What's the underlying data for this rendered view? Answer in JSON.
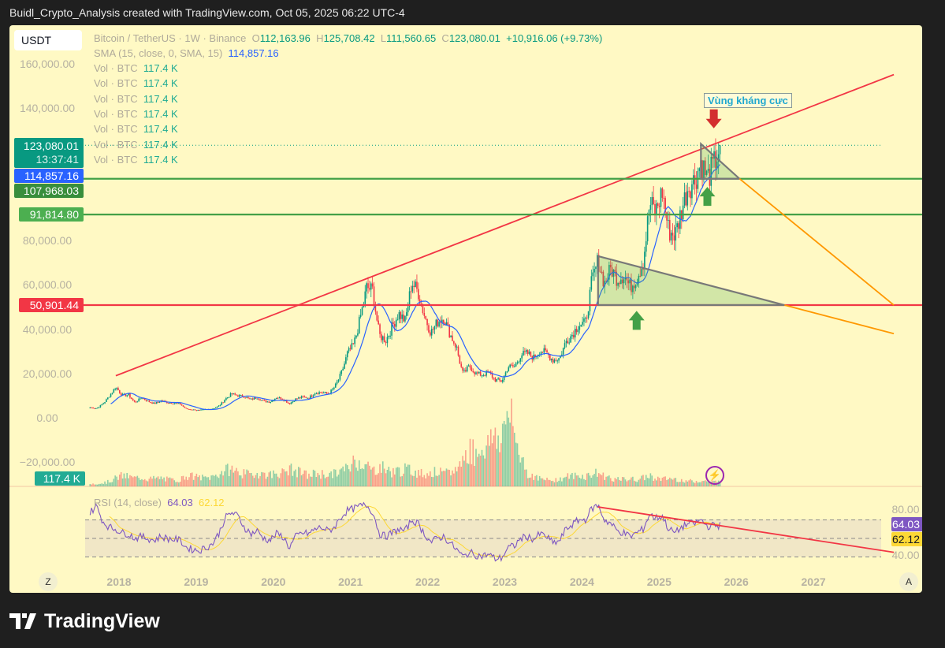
{
  "header": {
    "caption": "Buidl_Crypto_Analysis created with TradingView.com, Oct 05, 2025 06:22 UTC-4"
  },
  "currency_button": "USDT",
  "legend": {
    "symbol": "Bitcoin / TetherUS · 1W · Binance",
    "o_label": "O",
    "open": "112,163.96",
    "h_label": "H",
    "high": "125,708.42",
    "l_label": "L",
    "low": "111,560.65",
    "c_label": "C",
    "close": "123,080.01",
    "change": "+10,916.06 (+9.73%)",
    "sma_label": "SMA (15, close, 0, SMA, 15)",
    "sma_value": "114,857.16",
    "vol_lines": [
      {
        "label": "Vol · BTC",
        "value": "117.4 K"
      },
      {
        "label": "Vol · BTC",
        "value": "117.4 K"
      },
      {
        "label": "Vol · BTC",
        "value": "117.4 K"
      },
      {
        "label": "Vol · BTC",
        "value": "117.4 K"
      },
      {
        "label": "Vol · BTC",
        "value": "117.4 K"
      },
      {
        "label": "Vol · BTC",
        "value": "117.4 K"
      },
      {
        "label": "Vol · BTC",
        "value": "117.4 K"
      }
    ]
  },
  "price_axis": [
    "160,000.00",
    "140,000.00",
    "80,000.00",
    "60,000.00",
    "40,000.00",
    "20,000.00",
    "0.00",
    "−20,000.00"
  ],
  "price_ticks": [
    160000,
    140000,
    80000,
    60000,
    40000,
    20000,
    0,
    -20000
  ],
  "price_tags": {
    "last": "123,080.01",
    "countdown": "13:37:41",
    "sma": "114,857.16",
    "level1": "107,968.03",
    "level2": "91,814.80",
    "level3": "50,901.44",
    "volume": "117.4 K"
  },
  "annotation": "Vùng kháng cực",
  "rsi": {
    "label": "RSI (14, close)",
    "value": "64.03",
    "ma_value": "62.12",
    "axis": [
      "80.00",
      "40.00"
    ],
    "tag_rsi": "64.03",
    "tag_ma": "62.12"
  },
  "time_axis": [
    "2018",
    "2019",
    "2020",
    "2021",
    "2022",
    "2023",
    "2024",
    "2025",
    "2026",
    "2027"
  ],
  "scale_buttons": {
    "left": "Z",
    "right": "A"
  },
  "footer": {
    "brand": "TradingView"
  },
  "colors": {
    "background": "#fff9c4",
    "up": "#089981",
    "down": "#f23645",
    "sma": "#2962ff",
    "rsi": "#7e57c2",
    "rsi_ma": "#fdd835",
    "trend_red": "#f23645",
    "support_green": "#43a047",
    "projection": "#ff9800"
  },
  "chart_data": {
    "type": "candlestick",
    "interval": "1W",
    "start_month": "2017-08",
    "monthly_close": [
      4700,
      4300,
      6400,
      10000,
      14000,
      10200,
      10300,
      6900,
      9200,
      7500,
      6400,
      7700,
      7000,
      6600,
      6300,
      4000,
      3700,
      3400,
      3800,
      4100,
      5300,
      8500,
      10800,
      10000,
      9600,
      8300,
      9200,
      7500,
      7200,
      9300,
      8500,
      6400,
      8600,
      9400,
      9100,
      11300,
      11600,
      10800,
      13800,
      19700,
      29000,
      33100,
      45100,
      58800,
      57700,
      37300,
      35000,
      41500,
      47100,
      43800,
      61300,
      57000,
      46300,
      38500,
      43200,
      45500,
      37700,
      31800,
      19900,
      23300,
      20000,
      19400,
      20500,
      17200,
      16500,
      23100,
      23100,
      28500,
      29200,
      27200,
      30500,
      29200,
      26000,
      27000,
      34600,
      37700,
      42300,
      42600,
      61200,
      71300,
      60700,
      67500,
      62700,
      64600,
      59000,
      63300,
      70200,
      96400,
      93400,
      102400,
      84300,
      82500,
      94200,
      104600,
      107100,
      115700,
      108200,
      114000,
      123080
    ],
    "monthly_volume_k": [
      60,
      70,
      80,
      120,
      200,
      260,
      230,
      200,
      220,
      180,
      190,
      200,
      170,
      150,
      160,
      260,
      240,
      220,
      200,
      230,
      300,
      380,
      420,
      350,
      300,
      280,
      320,
      300,
      280,
      330,
      320,
      420,
      350,
      330,
      250,
      320,
      300,
      280,
      300,
      380,
      420,
      600,
      620,
      500,
      380,
      480,
      420,
      350,
      380,
      400,
      380,
      330,
      300,
      330,
      350,
      300,
      330,
      420,
      650,
      900,
      800,
      950,
      1000,
      1300,
      1100,
      1900,
      1200,
      800,
      300,
      250,
      180,
      150,
      160,
      170,
      230,
      250,
      260,
      240,
      300,
      320,
      250,
      200,
      160,
      170,
      180,
      160,
      200,
      260,
      200,
      170,
      190,
      180,
      150,
      130,
      120,
      140,
      120,
      110,
      117.4
    ],
    "monthly_rsi": [
      78,
      85,
      68,
      62,
      60,
      56,
      55,
      50,
      52,
      50,
      48,
      52,
      50,
      49,
      48,
      40,
      38,
      37,
      40,
      44,
      55,
      72,
      78,
      74,
      62,
      55,
      58,
      50,
      48,
      55,
      52,
      40,
      52,
      56,
      55,
      60,
      62,
      58,
      62,
      73,
      80,
      82,
      85,
      86,
      78,
      55,
      52,
      56,
      60,
      58,
      70,
      66,
      55,
      46,
      50,
      52,
      45,
      38,
      30,
      35,
      32,
      31,
      33,
      28,
      29,
      40,
      42,
      50,
      52,
      49,
      55,
      52,
      45,
      47,
      60,
      65,
      70,
      70,
      82,
      86,
      70,
      66,
      58,
      56,
      52,
      56,
      60,
      76,
      72,
      74,
      60,
      56,
      62,
      66,
      66,
      70,
      63,
      64,
      64.03
    ],
    "sma_period": 15,
    "price_range": [
      -25000,
      172000
    ],
    "rsi_levels": [
      70,
      50,
      30
    ],
    "drawings": [
      {
        "type": "trendline",
        "color": "#f23645",
        "from": [
          "2017-12",
          19000
        ],
        "to": [
          "2028-01",
          155000
        ]
      },
      {
        "type": "horizontal",
        "color": "#f23645",
        "price": 50901.44
      },
      {
        "type": "horizontal",
        "color": "#43a047",
        "price": 107968.03
      },
      {
        "type": "horizontal",
        "color": "#43a047",
        "price": 91814.8
      },
      {
        "type": "triangle",
        "points": [
          [
            "2024-03",
            73000
          ],
          [
            "2026-08",
            50901.44
          ],
          [
            "2024-03",
            50901.44
          ]
        ]
      },
      {
        "type": "triangle",
        "points": [
          [
            "2025-07",
            123700
          ],
          [
            "2026-01",
            107968.03
          ],
          [
            "2025-07",
            107968.03
          ]
        ]
      },
      {
        "type": "projection",
        "color": "#ff9800",
        "from": [
          "2026-01",
          107968.03
        ],
        "to": [
          "2028-01",
          50901.44
        ]
      },
      {
        "type": "projection",
        "color": "#ff9800",
        "from": [
          "2026-08",
          50901.44
        ],
        "to": [
          "2028-01",
          38000
        ]
      },
      {
        "type": "arrow-down",
        "color": "#d32f2f",
        "at": [
          "2025-09",
          135000
        ]
      },
      {
        "type": "arrow-up",
        "color": "#43a047",
        "at": [
          "2025-08",
          100000
        ]
      },
      {
        "type": "arrow-up",
        "color": "#43a047",
        "at": [
          "2024-09",
          44000
        ]
      },
      {
        "type": "rsi-trendline",
        "color": "#f23645",
        "from": [
          "2024-03",
          84
        ],
        "to": [
          "2028-01",
          35
        ]
      }
    ]
  }
}
